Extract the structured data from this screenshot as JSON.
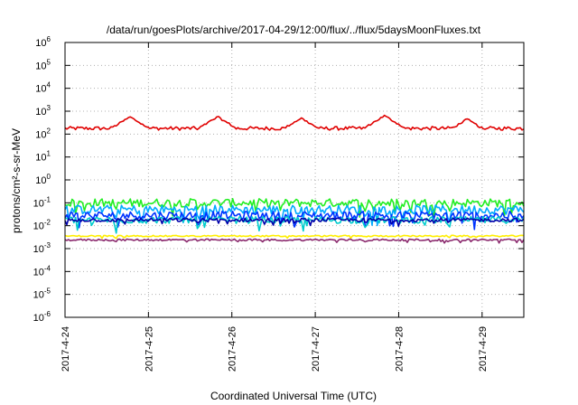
{
  "chart_data": {
    "type": "line",
    "title": "/data/run/goesPlots/archive/2017-04-29/12:00/flux/../flux/5daysMoonFluxes.txt",
    "xlabel": "Coordinated Universal Time (UTC)",
    "ylabel": "protons/cm²-s-sr-MeV",
    "y_scale": "log",
    "ylim_exponents": [
      -6,
      6
    ],
    "y_ticks": [
      {
        "base": "10",
        "exp": "6"
      },
      {
        "base": "10",
        "exp": "5"
      },
      {
        "base": "10",
        "exp": "4"
      },
      {
        "base": "10",
        "exp": "3"
      },
      {
        "base": "10",
        "exp": "2"
      },
      {
        "base": "10",
        "exp": "1"
      },
      {
        "base": "10",
        "exp": "0"
      },
      {
        "base": "10",
        "exp": "-1"
      },
      {
        "base": "10",
        "exp": "-2"
      },
      {
        "base": "10",
        "exp": "-3"
      },
      {
        "base": "10",
        "exp": "-4"
      },
      {
        "base": "10",
        "exp": "-5"
      },
      {
        "base": "10",
        "exp": "-6"
      }
    ],
    "x_ticks": [
      "2017-4-24",
      "2017-4-25",
      "2017-4-26",
      "2017-4-27",
      "2017-4-28",
      "2017-4-29"
    ],
    "xlim_days": [
      0,
      5.5
    ],
    "grid": true,
    "series": [
      {
        "color": "#e00000",
        "base_log10": 2.25,
        "noise": 0.08,
        "peaks": [
          [
            0.78,
            2.75
          ],
          [
            1.83,
            2.75
          ],
          [
            2.83,
            2.7
          ],
          [
            3.83,
            2.8
          ],
          [
            4.82,
            2.65
          ]
        ]
      },
      {
        "color": "#22ee22",
        "base_log10": -1.0,
        "noise": 0.18
      },
      {
        "color": "#00aaff",
        "base_log10": -1.3,
        "noise": 0.2
      },
      {
        "color": "#0033ff",
        "base_log10": -1.55,
        "noise": 0.18
      },
      {
        "color": "#00cccc",
        "base_log10": -1.75,
        "noise": 0.15
      },
      {
        "color": "#0000aa",
        "base_log10": -1.75,
        "noise": 0.08
      },
      {
        "color": "#ffee00",
        "base_log10": -2.45,
        "noise": 0.03
      },
      {
        "color": "#8b2a6e",
        "base_log10": -2.62,
        "noise": 0.04
      }
    ]
  }
}
